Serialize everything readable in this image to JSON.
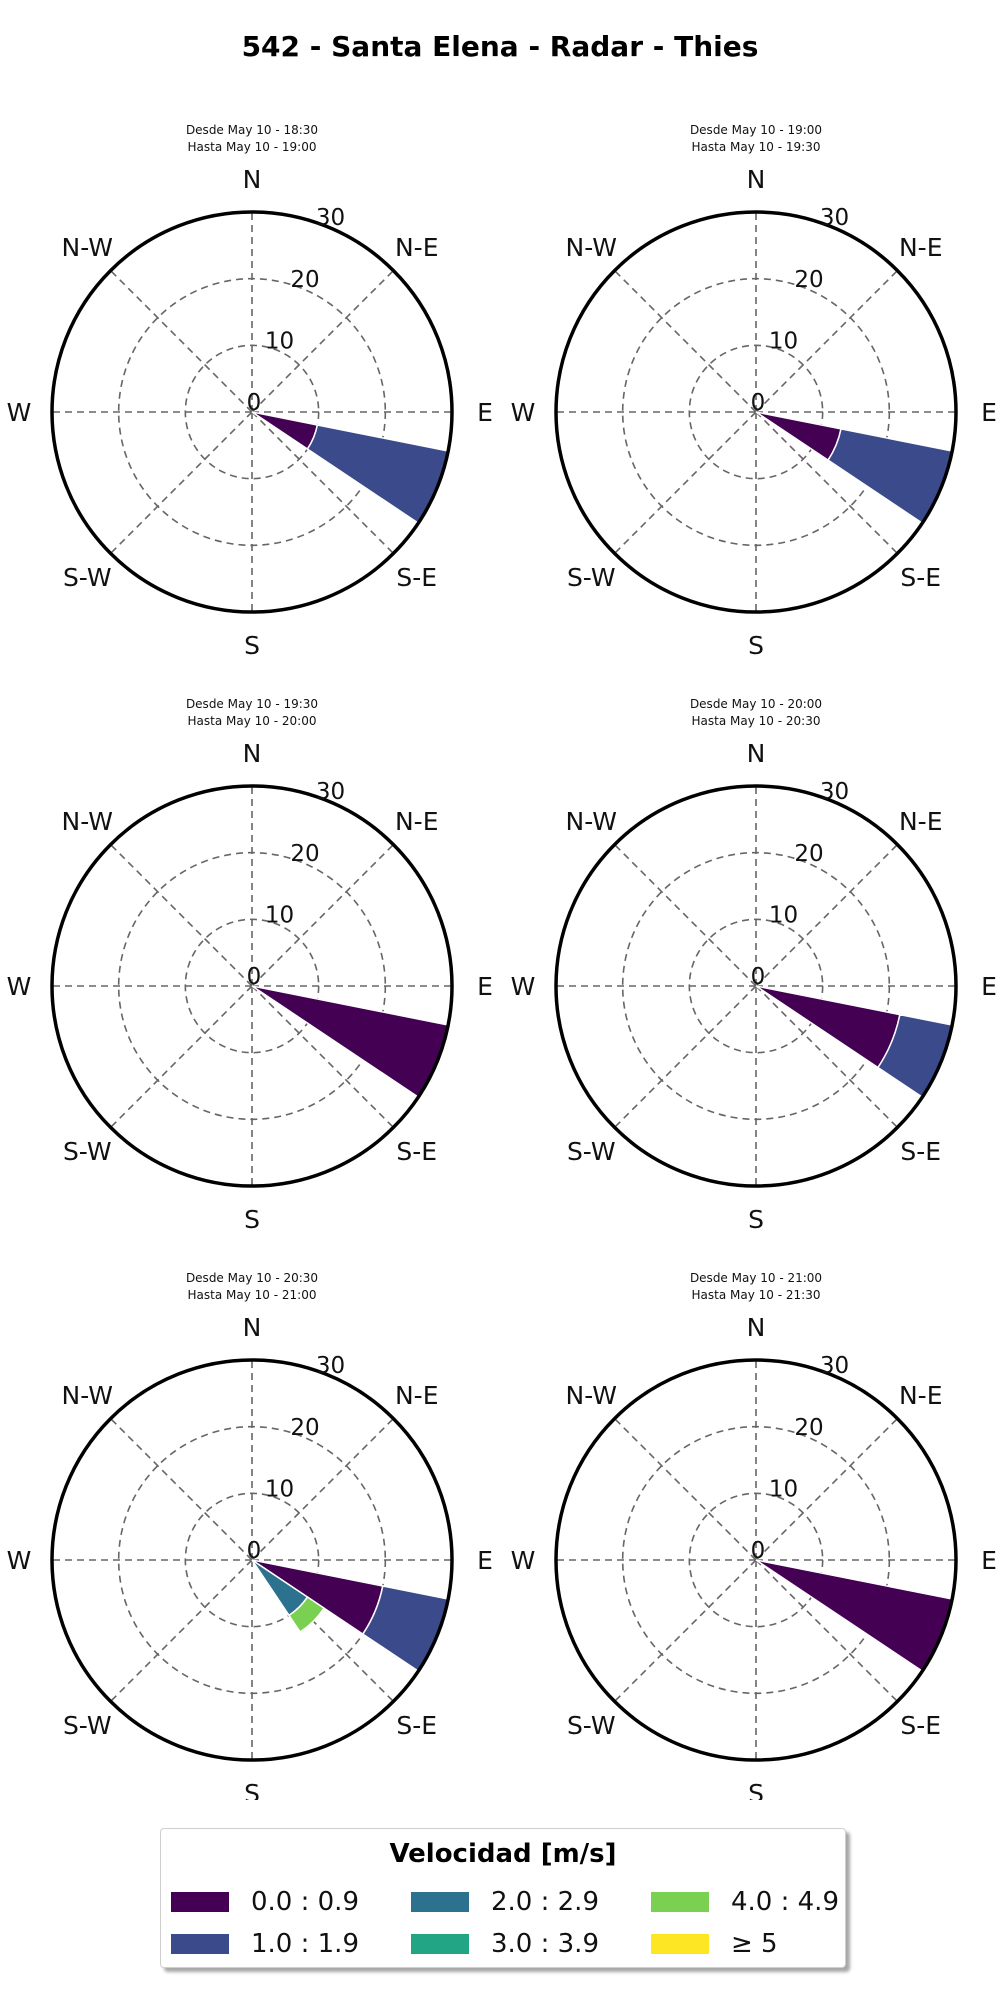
{
  "title": "542 - Santa Elena - Radar - Thies",
  "directions": [
    "N",
    "N-E",
    "E",
    "S-E",
    "S",
    "S-W",
    "W",
    "N-W"
  ],
  "radial_ticks": [
    "0",
    "10",
    "20",
    "30"
  ],
  "legend": {
    "title": "Velocidad [m/s]",
    "items": [
      {
        "label": "0.0 : 0.9",
        "color": "#440154"
      },
      {
        "label": "2.0 : 2.9",
        "color": "#2c728e"
      },
      {
        "label": "4.0 : 4.9",
        "color": "#7ad151"
      },
      {
        "label": "1.0 : 1.9",
        "color": "#3b4a8a"
      },
      {
        "label": "3.0 : 3.9",
        "color": "#21a585"
      },
      {
        "label": "≥ 5",
        "color": "#fde725"
      }
    ]
  },
  "chart_data": [
    {
      "type": "windrose",
      "subtitle_line1": "Desde May 10 - 18:30",
      "subtitle_line2": "Hasta May 10 - 19:00",
      "rmax": 30,
      "segments": [
        {
          "direction_deg": 112.5,
          "bin": "0.0 : 0.9",
          "r0": 0,
          "r1": 10
        },
        {
          "direction_deg": 112.5,
          "bin": "1.0 : 1.9",
          "r0": 10,
          "r1": 30
        }
      ]
    },
    {
      "type": "windrose",
      "subtitle_line1": "Desde May 10 - 19:00",
      "subtitle_line2": "Hasta May 10 - 19:30",
      "rmax": 30,
      "segments": [
        {
          "direction_deg": 112.5,
          "bin": "0.0 : 0.9",
          "r0": 0,
          "r1": 13
        },
        {
          "direction_deg": 112.5,
          "bin": "1.0 : 1.9",
          "r0": 13,
          "r1": 30
        }
      ]
    },
    {
      "type": "windrose",
      "subtitle_line1": "Desde May 10 - 19:30",
      "subtitle_line2": "Hasta May 10 - 20:00",
      "rmax": 30,
      "segments": [
        {
          "direction_deg": 112.5,
          "bin": "0.0 : 0.9",
          "r0": 0,
          "r1": 30
        }
      ]
    },
    {
      "type": "windrose",
      "subtitle_line1": "Desde May 10 - 20:00",
      "subtitle_line2": "Hasta May 10 - 20:30",
      "rmax": 30,
      "segments": [
        {
          "direction_deg": 112.5,
          "bin": "0.0 : 0.9",
          "r0": 0,
          "r1": 22
        },
        {
          "direction_deg": 112.5,
          "bin": "1.0 : 1.9",
          "r0": 22,
          "r1": 30
        }
      ]
    },
    {
      "type": "windrose",
      "subtitle_line1": "Desde May 10 - 20:30",
      "subtitle_line2": "Hasta May 10 - 21:00",
      "rmax": 30,
      "segments": [
        {
          "direction_deg": 112.5,
          "bin": "0.0 : 0.9",
          "r0": 0,
          "r1": 20
        },
        {
          "direction_deg": 112.5,
          "bin": "1.0 : 1.9",
          "r0": 20,
          "r1": 30
        },
        {
          "direction_deg": 135,
          "bin": "2.0 : 2.9",
          "r0": 0,
          "r1": 10
        },
        {
          "direction_deg": 135,
          "bin": "4.0 : 4.9",
          "r0": 10,
          "r1": 13
        }
      ]
    },
    {
      "type": "windrose",
      "subtitle_line1": "Desde May 10 - 21:00",
      "subtitle_line2": "Hasta May 10 - 21:30",
      "rmax": 30,
      "segments": [
        {
          "direction_deg": 112.5,
          "bin": "0.0 : 0.9",
          "r0": 0,
          "r1": 30
        }
      ]
    }
  ]
}
